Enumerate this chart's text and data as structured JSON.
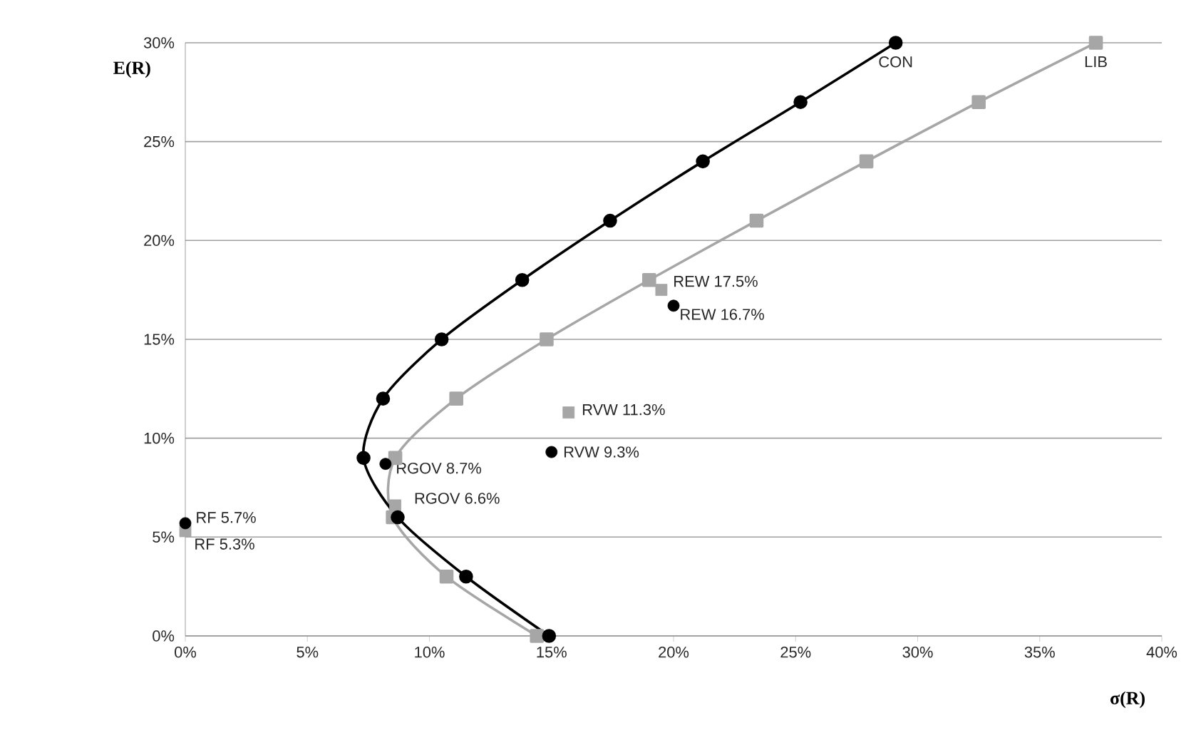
{
  "chart_data": {
    "type": "line",
    "xlabel": "σ(R)",
    "ylabel": "E(R)",
    "xlim": [
      0,
      40
    ],
    "ylim": [
      0,
      30
    ],
    "xticks": [
      {
        "value": 0,
        "label": "0%"
      },
      {
        "value": 5,
        "label": "5%"
      },
      {
        "value": 10,
        "label": "10%"
      },
      {
        "value": 15,
        "label": "15%"
      },
      {
        "value": 20,
        "label": "20%"
      },
      {
        "value": 25,
        "label": "25%"
      },
      {
        "value": 30,
        "label": "30%"
      },
      {
        "value": 35,
        "label": "35%"
      },
      {
        "value": 40,
        "label": "40%"
      }
    ],
    "yticks": [
      {
        "value": 0,
        "label": "0%"
      },
      {
        "value": 5,
        "label": "5%"
      },
      {
        "value": 10,
        "label": "10%"
      },
      {
        "value": 15,
        "label": "15%"
      },
      {
        "value": 20,
        "label": "20%"
      },
      {
        "value": 25,
        "label": "25%"
      },
      {
        "value": 30,
        "label": "30%"
      }
    ],
    "grid": "y",
    "series": [
      {
        "name": "LIB",
        "color": "#a6a6a6",
        "marker": "square",
        "x": [
          14.4,
          10.7,
          8.5,
          8.6,
          11.1,
          14.8,
          19.0,
          23.4,
          27.9,
          32.5,
          37.3
        ],
        "values": [
          0,
          3,
          6,
          9,
          12,
          15,
          18,
          21,
          24,
          27,
          30
        ]
      },
      {
        "type": "scatter",
        "color": "#a6a6a6",
        "marker": "square",
        "x": [
          19.5,
          15.7,
          8.6,
          0
        ],
        "values": [
          17.5,
          11.3,
          6.6,
          5.3
        ]
      },
      {
        "name": "CON",
        "color": "#000000",
        "marker": "circle",
        "x": [
          14.9,
          11.5,
          8.7,
          7.3,
          8.1,
          10.5,
          13.8,
          17.4,
          21.2,
          25.2,
          29.1
        ],
        "values": [
          0,
          3,
          6,
          9,
          12,
          15,
          18,
          21,
          24,
          27,
          30
        ]
      },
      {
        "type": "scatter",
        "color": "#000000",
        "marker": "circle",
        "x": [
          20.0,
          15.0,
          8.2,
          0
        ],
        "values": [
          16.7,
          9.3,
          8.7,
          5.7
        ]
      }
    ],
    "annotations": [
      {
        "text": "REW 17.5%",
        "x": 19.5,
        "y": 17.5
      },
      {
        "text": "REW 16.7%",
        "x": 20.0,
        "y": 16.7
      },
      {
        "text": "RVW 11.3%",
        "x": 15.7,
        "y": 11.3
      },
      {
        "text": "RVW 9.3%",
        "x": 15.0,
        "y": 9.3
      },
      {
        "text": "RGOV 8.7%",
        "x": 8.2,
        "y": 8.7
      },
      {
        "text": "RGOV 6.6%",
        "x": 8.6,
        "y": 6.6
      },
      {
        "text": "RF 5.7%",
        "x": 0,
        "y": 5.7
      },
      {
        "text": "RF 5.3%",
        "x": 0,
        "y": 5.3
      }
    ]
  }
}
